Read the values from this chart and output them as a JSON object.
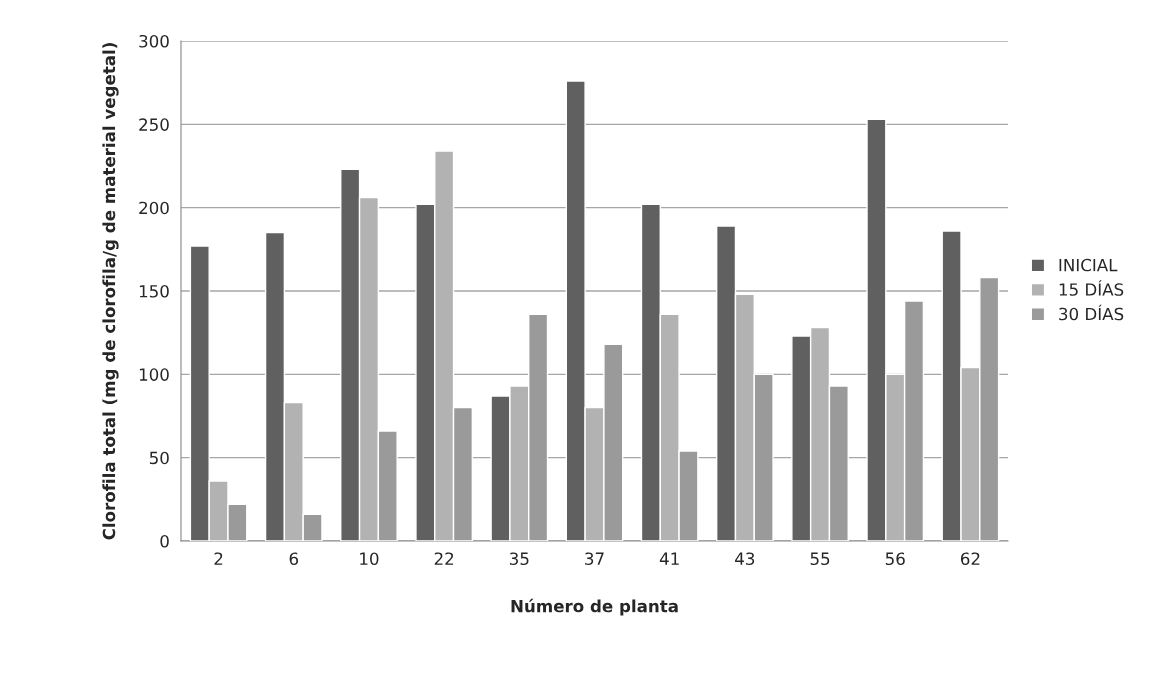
{
  "chart_data": {
    "type": "bar",
    "xlabel": "Número de planta",
    "ylabel": "Clorofila total (mg de clorofila/g de material vegetal)",
    "categories": [
      "2",
      "6",
      "10",
      "22",
      "35",
      "37",
      "41",
      "43",
      "55",
      "56",
      "62"
    ],
    "series": [
      {
        "name": "INICIAL",
        "color": "#606060",
        "values": [
          177,
          185,
          223,
          202,
          87,
          276,
          202,
          189,
          123,
          253,
          186
        ]
      },
      {
        "name": "15 DÍAS",
        "color": "#b2b2b2",
        "values": [
          36,
          83,
          206,
          234,
          93,
          80,
          136,
          148,
          128,
          100,
          104
        ]
      },
      {
        "name": "30 DÍAS",
        "color": "#9a9a9a",
        "values": [
          22,
          16,
          66,
          80,
          136,
          118,
          54,
          100,
          93,
          144,
          158
        ]
      }
    ],
    "ylim": [
      0,
      300
    ],
    "yticks": [
      0,
      50,
      100,
      150,
      200,
      250,
      300
    ],
    "grid": "y",
    "legend": "right"
  }
}
